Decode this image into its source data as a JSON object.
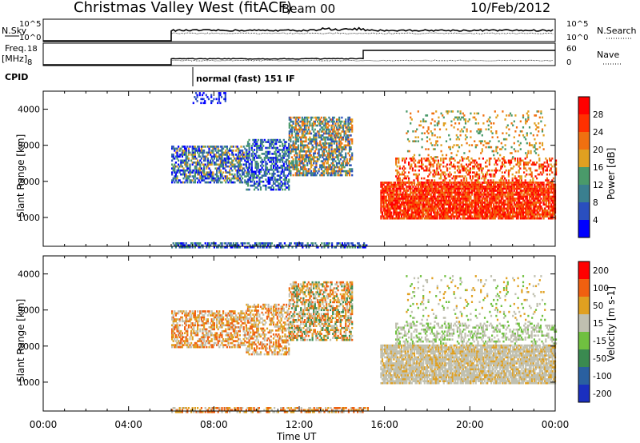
{
  "header": {
    "title": "Christmas Valley West (fitACF)",
    "beam": "Beam 00",
    "date": "10/Feb/2012"
  },
  "top_panels": {
    "nsky_label": "N.Sky",
    "nsky_ticks": [
      "10^5",
      "10^0"
    ],
    "nsearch_label": "N.Search",
    "nsearch_ticks": [
      "10^5",
      "10^0"
    ],
    "freq_label": "Freq.",
    "freq_unit": "[MHz]",
    "freq_ticks": [
      "18",
      "8"
    ],
    "nave_label": "Nave",
    "nave_ticks": [
      "60",
      "0"
    ],
    "cpid_label": "CPID",
    "cpid_text": "normal (fast) 151 IF"
  },
  "x_axis": {
    "label": "Time UT",
    "ticks": [
      "00:00",
      "04:00",
      "08:00",
      "12:00",
      "16:00",
      "20:00",
      "00:00"
    ]
  },
  "colors": {
    "power_scale": [
      "#0000ff",
      "#2a4fbf",
      "#3a7f8f",
      "#4a9a6a",
      "#e0a020",
      "#f07010",
      "#ff3000",
      "#ff0000"
    ],
    "velocity_scale": [
      "#1a2fbf",
      "#2a60a0",
      "#3a8a50",
      "#70c040",
      "#c0c0b0",
      "#e0a020",
      "#f06010",
      "#ff0000"
    ]
  },
  "chart_data": [
    {
      "type": "heatmap",
      "name": "power_panel",
      "ylabel": "Slant Range [km]",
      "yticks": [
        "4000",
        "3000",
        "2000",
        "1000"
      ],
      "ylim": [
        200,
        4500
      ],
      "xlim_hours": [
        0,
        24
      ],
      "colorbar_label": "Power [dB]",
      "colorbar_ticks": [
        "28",
        "24",
        "20",
        "16",
        "12",
        "8",
        "4"
      ],
      "regions": [
        {
          "t0": 6.0,
          "t1": 15.2,
          "r0": 200,
          "r1": 320,
          "colors": [
            0,
            1,
            2,
            3
          ],
          "density": 0.55
        },
        {
          "t0": 6.0,
          "t1": 9.5,
          "r0": 2000,
          "r1": 3000,
          "colors": [
            0,
            1,
            2,
            3,
            4
          ],
          "density": 0.6
        },
        {
          "t0": 9.5,
          "t1": 11.5,
          "r0": 1800,
          "r1": 3200,
          "colors": [
            0,
            1,
            2,
            3
          ],
          "density": 0.55
        },
        {
          "t0": 11.5,
          "t1": 14.5,
          "r0": 2200,
          "r1": 3800,
          "colors": [
            1,
            2,
            3,
            4,
            5
          ],
          "density": 0.6
        },
        {
          "t0": 7.0,
          "t1": 8.5,
          "r0": 4200,
          "r1": 4500,
          "colors": [
            0,
            1
          ],
          "density": 0.25
        },
        {
          "t0": 15.8,
          "t1": 24.0,
          "r0": 1000,
          "r1": 2000,
          "colors": [
            5,
            6,
            7
          ],
          "density": 0.85
        },
        {
          "t0": 16.5,
          "t1": 24.0,
          "r0": 2000,
          "r1": 2700,
          "colors": [
            4,
            5,
            6,
            7
          ],
          "density": 0.35
        },
        {
          "t0": 17.0,
          "t1": 23.5,
          "r0": 2700,
          "r1": 4000,
          "colors": [
            3,
            4,
            5
          ],
          "density": 0.12
        }
      ]
    },
    {
      "type": "heatmap",
      "name": "velocity_panel",
      "ylabel": "Slant Range [km]",
      "yticks": [
        "4000",
        "3000",
        "2000",
        "1000"
      ],
      "ylim": [
        200,
        4500
      ],
      "xlim_hours": [
        0,
        24
      ],
      "colorbar_label": "Velocity [m s-1]",
      "colorbar_ticks": [
        "200",
        "100",
        "50",
        "15",
        "-15",
        "-50",
        "-100",
        "-200"
      ],
      "regions": [
        {
          "t0": 6.0,
          "t1": 15.2,
          "r0": 200,
          "r1": 320,
          "colors": [
            4,
            5,
            6
          ],
          "density": 0.55
        },
        {
          "t0": 6.0,
          "t1": 9.5,
          "r0": 2000,
          "r1": 3000,
          "colors": [
            4,
            5,
            6
          ],
          "density": 0.55
        },
        {
          "t0": 9.5,
          "t1": 11.5,
          "r0": 1800,
          "r1": 3200,
          "colors": [
            4,
            5,
            6
          ],
          "density": 0.5
        },
        {
          "t0": 11.5,
          "t1": 14.5,
          "r0": 2200,
          "r1": 3800,
          "colors": [
            4,
            5,
            6,
            2
          ],
          "density": 0.55
        },
        {
          "t0": 15.8,
          "t1": 24.0,
          "r0": 1000,
          "r1": 2100,
          "colors": [
            4,
            4,
            4,
            5
          ],
          "density": 0.85
        },
        {
          "t0": 16.5,
          "t1": 24.0,
          "r0": 2100,
          "r1": 2700,
          "colors": [
            4,
            4,
            3
          ],
          "density": 0.35
        },
        {
          "t0": 17.0,
          "t1": 23.5,
          "r0": 2700,
          "r1": 4000,
          "colors": [
            4,
            5,
            3
          ],
          "density": 0.1
        }
      ]
    }
  ]
}
